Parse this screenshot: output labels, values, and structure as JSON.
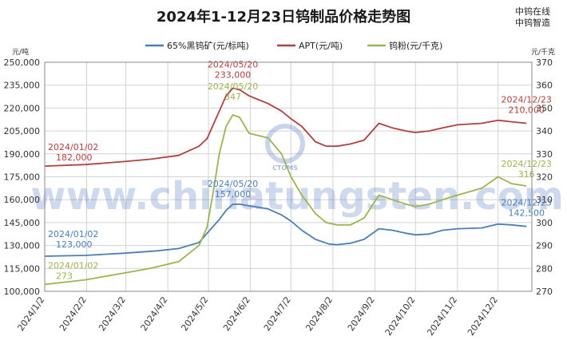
{
  "brand": {
    "line1": "中钨在线",
    "line2": "中钨智造"
  },
  "watermark": {
    "text": "www.chinatungsten.com",
    "logo_text": "CTOMS"
  },
  "chart_data": {
    "type": "line",
    "title": "2024年1-12月23日钨制品价格走势图",
    "left_axis": {
      "unit": "元/吨",
      "min": 100000,
      "max": 250000,
      "ticks": [
        "100,000",
        "115,000",
        "130,000",
        "145,000",
        "160,000",
        "175,000",
        "190,000",
        "205,000",
        "220,000",
        "235,000",
        "250,000"
      ]
    },
    "right_axis": {
      "unit": "元/千克",
      "min": 270,
      "max": 370,
      "ticks": [
        "270",
        "280",
        "290",
        "300",
        "310",
        "320",
        "330",
        "340",
        "350",
        "360",
        "370"
      ]
    },
    "x_ticks": [
      "2024/1/2",
      "2024/2/2",
      "2024/3/2",
      "2024/4/2",
      "2024/5/2",
      "2024/6/2",
      "2024/7/2",
      "2024/8/2",
      "2024/9/2",
      "2024/10/2",
      "2024/11/2",
      "2024/12/2"
    ],
    "x_range": [
      "2024-01-02",
      "2024-12-27"
    ],
    "grid": true,
    "legend_position": "top",
    "series": [
      {
        "name": "65%黑钨矿(元/标吨)",
        "axis": "left",
        "color": "#4a7eb5",
        "points": [
          [
            "2024-01-02",
            123000
          ],
          [
            "2024-02-01",
            123500
          ],
          [
            "2024-03-01",
            125000
          ],
          [
            "2024-03-25",
            126500
          ],
          [
            "2024-04-10",
            128000
          ],
          [
            "2024-04-25",
            132000
          ],
          [
            "2024-05-01",
            138000
          ],
          [
            "2024-05-06",
            143000
          ],
          [
            "2024-05-10",
            147000
          ],
          [
            "2024-05-15",
            153000
          ],
          [
            "2024-05-20",
            157000
          ],
          [
            "2024-05-25",
            157000
          ],
          [
            "2024-06-01",
            156000
          ],
          [
            "2024-06-15",
            154000
          ],
          [
            "2024-06-25",
            150000
          ],
          [
            "2024-07-02",
            146000
          ],
          [
            "2024-07-10",
            140000
          ],
          [
            "2024-07-20",
            134000
          ],
          [
            "2024-07-30",
            131000
          ],
          [
            "2024-08-05",
            130500
          ],
          [
            "2024-08-15",
            131500
          ],
          [
            "2024-08-25",
            134000
          ],
          [
            "2024-09-05",
            141000
          ],
          [
            "2024-09-15",
            140000
          ],
          [
            "2024-09-25",
            138000
          ],
          [
            "2024-10-02",
            137000
          ],
          [
            "2024-10-12",
            137500
          ],
          [
            "2024-10-22",
            140000
          ],
          [
            "2024-11-02",
            141000
          ],
          [
            "2024-11-20",
            141500
          ],
          [
            "2024-12-02",
            144000
          ],
          [
            "2024-12-12",
            143500
          ],
          [
            "2024-12-23",
            142500
          ]
        ]
      },
      {
        "name": "APT(元/吨)",
        "axis": "left",
        "color": "#b04040",
        "points": [
          [
            "2024-01-02",
            182000
          ],
          [
            "2024-02-01",
            183000
          ],
          [
            "2024-03-01",
            185000
          ],
          [
            "2024-03-20",
            186500
          ],
          [
            "2024-04-10",
            189000
          ],
          [
            "2024-04-25",
            195000
          ],
          [
            "2024-05-01",
            200000
          ],
          [
            "2024-05-06",
            210000
          ],
          [
            "2024-05-10",
            218000
          ],
          [
            "2024-05-15",
            228000
          ],
          [
            "2024-05-20",
            233000
          ],
          [
            "2024-05-25",
            232000
          ],
          [
            "2024-06-01",
            228000
          ],
          [
            "2024-06-15",
            223000
          ],
          [
            "2024-06-25",
            218000
          ],
          [
            "2024-07-02",
            213000
          ],
          [
            "2024-07-10",
            208000
          ],
          [
            "2024-07-20",
            198000
          ],
          [
            "2024-07-28",
            195000
          ],
          [
            "2024-08-05",
            195000
          ],
          [
            "2024-08-15",
            196500
          ],
          [
            "2024-08-25",
            199000
          ],
          [
            "2024-09-05",
            210000
          ],
          [
            "2024-09-15",
            207000
          ],
          [
            "2024-09-25",
            205000
          ],
          [
            "2024-10-02",
            204000
          ],
          [
            "2024-10-12",
            205000
          ],
          [
            "2024-10-22",
            207000
          ],
          [
            "2024-11-02",
            209000
          ],
          [
            "2024-11-20",
            210000
          ],
          [
            "2024-12-02",
            212000
          ],
          [
            "2024-12-12",
            211000
          ],
          [
            "2024-12-23",
            210000
          ]
        ]
      },
      {
        "name": "钨粉(元/千克)",
        "axis": "right",
        "color": "#9ab550",
        "points": [
          [
            "2024-01-02",
            273
          ],
          [
            "2024-02-01",
            275
          ],
          [
            "2024-03-01",
            278
          ],
          [
            "2024-03-20",
            280
          ],
          [
            "2024-04-10",
            283
          ],
          [
            "2024-04-25",
            290
          ],
          [
            "2024-05-01",
            298
          ],
          [
            "2024-05-06",
            315
          ],
          [
            "2024-05-10",
            330
          ],
          [
            "2024-05-15",
            342
          ],
          [
            "2024-05-20",
            347
          ],
          [
            "2024-05-25",
            346
          ],
          [
            "2024-06-01",
            339
          ],
          [
            "2024-06-15",
            337
          ],
          [
            "2024-06-25",
            330
          ],
          [
            "2024-07-02",
            320
          ],
          [
            "2024-07-10",
            312
          ],
          [
            "2024-07-20",
            304
          ],
          [
            "2024-07-28",
            300
          ],
          [
            "2024-08-05",
            299
          ],
          [
            "2024-08-15",
            299
          ],
          [
            "2024-08-25",
            302
          ],
          [
            "2024-09-05",
            312
          ],
          [
            "2024-09-15",
            310
          ],
          [
            "2024-09-25",
            308
          ],
          [
            "2024-10-02",
            307
          ],
          [
            "2024-10-12",
            308
          ],
          [
            "2024-10-22",
            310
          ],
          [
            "2024-11-02",
            312
          ],
          [
            "2024-11-20",
            315
          ],
          [
            "2024-12-02",
            320
          ],
          [
            "2024-12-12",
            317
          ],
          [
            "2024-12-23",
            316
          ]
        ]
      }
    ],
    "annotations": [
      {
        "series": 1,
        "date_label": "2024/01/02",
        "value_label": "182,000"
      },
      {
        "series": 1,
        "date_label": "2024/05/20",
        "value_label": "233,000"
      },
      {
        "series": 1,
        "date_label": "2024/12/23",
        "value_label": "210,000"
      },
      {
        "series": 0,
        "date_label": "2024/01/02",
        "value_label": "123,000"
      },
      {
        "series": 0,
        "date_label": "2024/05/20",
        "value_label": "157,000"
      },
      {
        "series": 0,
        "date_label": "2024/12/23",
        "value_label": "142,500"
      },
      {
        "series": 2,
        "date_label": "2024/01/02",
        "value_label": "273"
      },
      {
        "series": 2,
        "date_label": "2024/05/20",
        "value_label": "347"
      },
      {
        "series": 2,
        "date_label": "2024/12/23",
        "value_label": "316"
      }
    ]
  }
}
